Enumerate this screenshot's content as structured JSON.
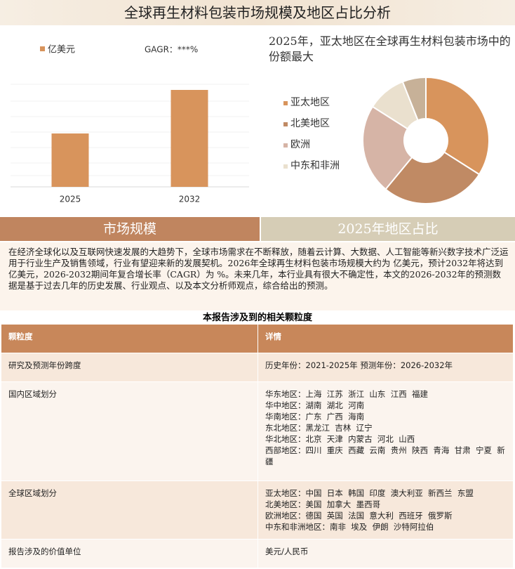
{
  "header": {
    "title": "全球再生材料包装市场规模及地区占比分析"
  },
  "chart_data": [
    {
      "type": "bar",
      "categories": [
        "2025",
        "2032"
      ],
      "values": [
        76,
        138
      ],
      "color": "#D8945C",
      "ylim": [
        0,
        160
      ],
      "legend": "亿美元",
      "annotation": "GAGR：***%"
    },
    {
      "type": "pie",
      "title": "2025年，亚太地区在全球再生材料包装市场中的份额最大",
      "categories": [
        "亚太地区",
        "北美地区",
        "欧洲",
        "中东和非洲",
        null
      ],
      "values": [
        34,
        27,
        23,
        10,
        6
      ],
      "colors": [
        "#D8945C",
        "#C08A64",
        "#D6B4A6",
        "#EAE0CE",
        "#C7B198"
      ]
    }
  ],
  "sections": [
    "市场规模",
    "2025年地区占比"
  ],
  "paragraph": "在经济全球化以及互联网快速发展的大趋势下，全球市场需求在不断释放，随着云计算、大数据、人工智能等新兴数字技术广泛运用于行业生产及销售领域，行业有望迎来新的发展契机。2026年全球再生材料包装市场规模大约为 亿美元，预计2032年将达到 亿美元，2026-2032期间年复合增长率（CAGR）为 %。未来几年，本行业具有很大不确定性，本文的2026-2032年的预测数据是基于过去几年的历史发展、行业观点、以及本文分析师观点，综合给出的预测。",
  "table": {
    "title": "本报告涉及到的相关颗粒度",
    "header": [
      "颗粒度",
      "详情"
    ],
    "rows": [
      [
        "研究及预测年份跨度",
        [
          "历史年份：2021-2025年 预测年份：2026-2032年"
        ]
      ],
      [
        "国内区域划分",
        [
          "华东地区：上海  江苏  浙江  山东  江西  福建",
          "华中地区：湖南  湖北  河南",
          "华南地区：广东  广西  海南",
          "东北地区：黑龙江  吉林  辽宁",
          "华北地区：北京  天津  内蒙古  河北  山西",
          "西部地区：四川  重庆  西藏  云南  贵州  陕西  青海  甘肃  宁夏  新疆"
        ]
      ],
      [
        "全球区域划分",
        [
          "亚太地区：中国  日本  韩国  印度  澳大利亚  新西兰  东盟",
          "北美地区：美国  加拿大  墨西哥",
          "欧洲地区：德国  英国  法国  意大利  西班牙  俄罗斯",
          "中东和非洲地区：南非  埃及  伊朗  沙特阿拉伯"
        ]
      ],
      [
        "报告涉及的价值单位",
        [
          "美元/人民币"
        ]
      ]
    ]
  }
}
